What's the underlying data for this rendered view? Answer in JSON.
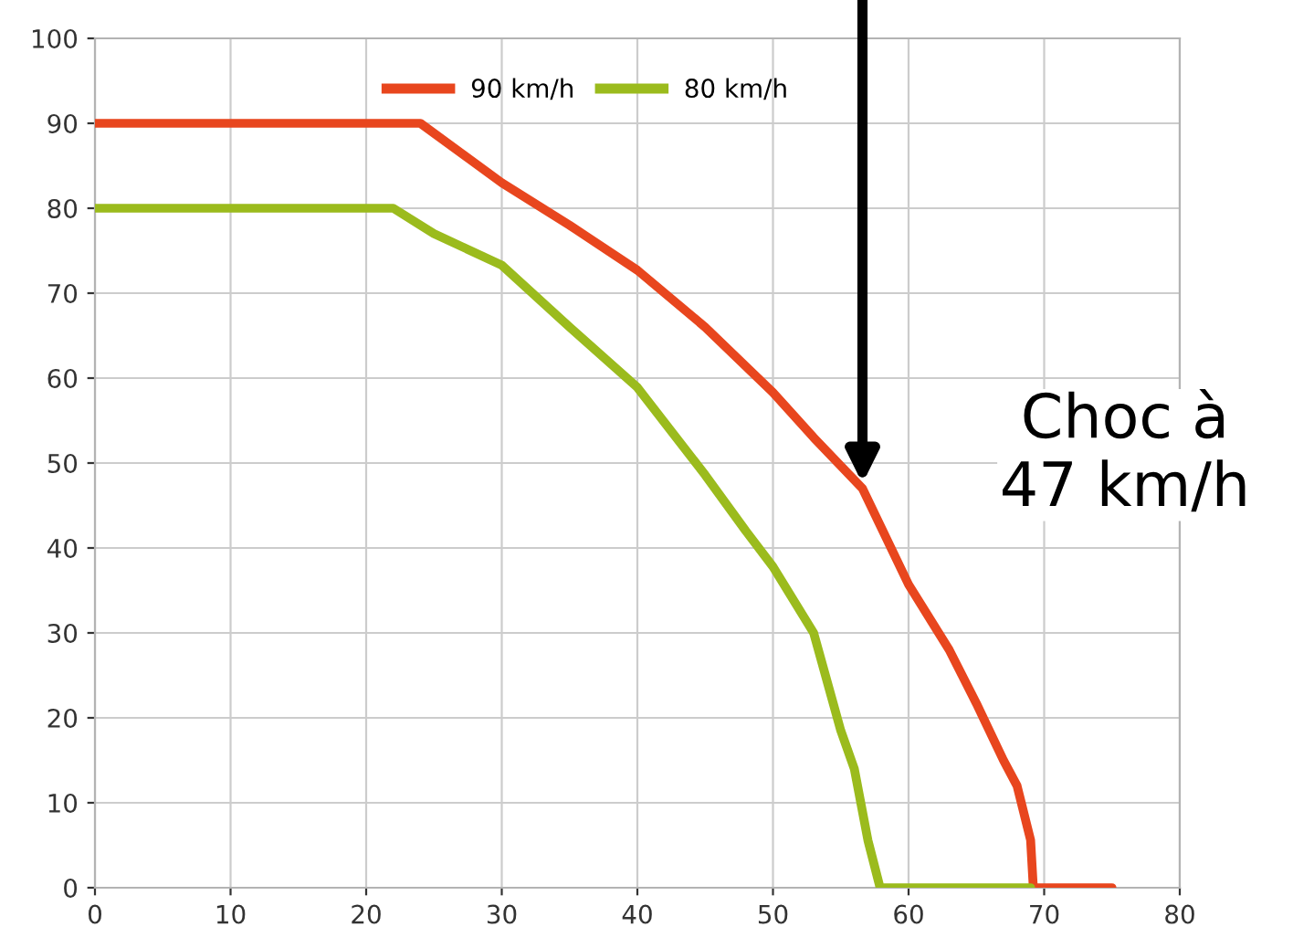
{
  "chart_data": {
    "type": "line",
    "xlim": [
      0,
      80
    ],
    "ylim": [
      0,
      100
    ],
    "xticks": [
      0,
      10,
      20,
      30,
      40,
      50,
      60,
      70,
      80
    ],
    "yticks": [
      0,
      10,
      20,
      30,
      40,
      50,
      60,
      70,
      80,
      90,
      100
    ],
    "grid": true,
    "legend": "top right",
    "marker": "none",
    "line_style": "solid",
    "series": [
      {
        "name": "90 km/h",
        "color": "#e8461e",
        "x": [
          0,
          24,
          30,
          35,
          40,
          45,
          50,
          53,
          56.6,
          60,
          63,
          65,
          67,
          68,
          69,
          69.2,
          75
        ],
        "values": [
          90,
          90,
          83,
          78,
          72.7,
          66,
          58.3,
          53,
          47,
          35.7,
          28,
          21.7,
          15,
          12,
          5.6,
          0,
          0
        ]
      },
      {
        "name": "80 km/h",
        "color": "#9bbb1d",
        "x": [
          0,
          22,
          25,
          30,
          35,
          40,
          45,
          48,
          50,
          53,
          55,
          56,
          57,
          57.9,
          69
        ],
        "values": [
          80,
          80,
          77,
          73.3,
          66,
          58.9,
          48.6,
          42,
          37.8,
          30,
          18.5,
          14,
          5.6,
          0,
          0
        ]
      }
    ],
    "annotations": [
      {
        "text": "Choc à\n47 km/h",
        "x": 56.6,
        "y": 47
      }
    ]
  }
}
